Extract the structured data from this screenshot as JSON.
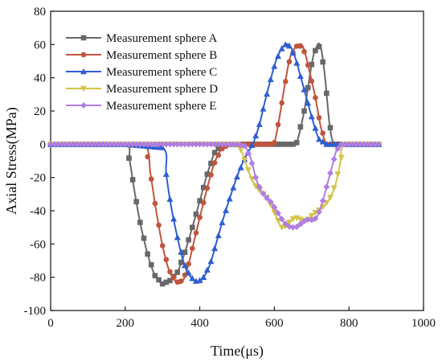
{
  "chart_data": {
    "type": "line",
    "title": "",
    "xlabel": "Time(μs)",
    "ylabel": "Axial Stress(MPa)",
    "xlim": [
      0,
      1000
    ],
    "ylim": [
      -100,
      80
    ],
    "x_ticks": [
      0,
      200,
      400,
      600,
      800,
      1000
    ],
    "y_ticks": [
      -100,
      -80,
      -60,
      -40,
      -20,
      0,
      20,
      40,
      60,
      80
    ],
    "legend_position": "top-left",
    "grid": false,
    "series": [
      {
        "name": "Measurement sphere A",
        "color": "#686868",
        "marker": "square",
        "x": [
          0,
          100,
          200,
          212,
          224,
          240,
          260,
          280,
          300,
          320,
          340,
          360,
          380,
          400,
          420,
          440,
          460,
          480,
          500,
          520,
          540,
          560,
          580,
          600,
          620,
          640,
          650,
          660,
          680,
          700,
          712,
          724,
          736,
          748,
          760,
          780,
          800,
          850,
          880
        ],
        "y": [
          0,
          0,
          0,
          -10,
          -27,
          -47,
          -66,
          -79,
          -84,
          -82,
          -77,
          -65,
          -50,
          -34,
          -18,
          -5,
          0,
          0,
          0,
          0,
          0,
          0,
          0,
          0,
          0,
          0,
          0,
          1,
          20,
          48,
          58,
          59,
          40,
          12,
          0,
          0,
          0,
          0,
          0
        ]
      },
      {
        "name": "Measurement sphere B",
        "color": "#c0553d",
        "marker": "circle",
        "x": [
          0,
          100,
          200,
          255,
          268,
          283,
          300,
          318,
          338,
          355,
          370,
          385,
          400,
          418,
          438,
          458,
          478,
          496,
          510,
          530,
          550,
          570,
          590,
          600,
          612,
          626,
          642,
          660,
          676,
          692,
          710,
          725,
          740,
          755,
          770,
          790,
          850,
          880
        ],
        "y": [
          0,
          0,
          0,
          -1,
          -18,
          -40,
          -61,
          -76,
          -83,
          -82,
          -72,
          -58,
          -44,
          -28,
          -12,
          -3,
          0,
          0,
          0,
          0,
          0,
          0,
          0,
          1,
          14,
          33,
          52,
          59,
          59,
          46,
          28,
          10,
          0,
          0,
          0,
          0,
          0,
          0
        ]
      },
      {
        "name": "Measurement sphere C",
        "color": "#2e5fd0",
        "marker": "triangle",
        "x": [
          0,
          100,
          200,
          300,
          310,
          322,
          340,
          358,
          376,
          394,
          410,
          428,
          446,
          464,
          484,
          504,
          524,
          544,
          560,
          574,
          590,
          604,
          618,
          630,
          642,
          656,
          670,
          686,
          702,
          720,
          740,
          760,
          780,
          850,
          880
        ],
        "y": [
          0,
          0,
          0,
          -2,
          -18,
          -36,
          -56,
          -72,
          -80,
          -83,
          -80,
          -72,
          -58,
          -44,
          -30,
          -17,
          -7,
          1,
          12,
          25,
          39,
          50,
          57,
          60,
          59,
          52,
          41,
          28,
          15,
          3,
          0,
          0,
          0,
          0,
          0
        ]
      },
      {
        "name": "Measurement sphere D",
        "color": "#d4c44a",
        "marker": "triangle-down",
        "x": [
          0,
          100,
          200,
          300,
          400,
          470,
          500,
          512,
          524,
          538,
          552,
          566,
          580,
          594,
          608,
          620,
          632,
          644,
          656,
          668,
          680,
          692,
          704,
          718,
          734,
          750,
          764,
          776,
          788,
          850,
          880
        ],
        "y": [
          0,
          0,
          0,
          0,
          0,
          0,
          0,
          -4,
          -12,
          -20,
          -26,
          -29,
          -32,
          -38,
          -45,
          -50,
          -49,
          -46,
          -44,
          -45,
          -46,
          -45,
          -42,
          -40,
          -37,
          -32,
          -24,
          -12,
          0,
          0,
          0
        ]
      },
      {
        "name": "Measurement sphere E",
        "color": "#b07de0",
        "marker": "diamond",
        "x": [
          0,
          100,
          200,
          300,
          400,
          500,
          520,
          536,
          550,
          564,
          578,
          592,
          606,
          620,
          634,
          646,
          658,
          670,
          682,
          694,
          706,
          718,
          730,
          742,
          754,
          766,
          778,
          790,
          850,
          880
        ],
        "y": [
          0,
          0,
          0,
          0,
          0,
          0,
          -1,
          -8,
          -20,
          -28,
          -32,
          -35,
          -40,
          -45,
          -49,
          -50,
          -50,
          -48,
          -46,
          -45,
          -46,
          -42,
          -34,
          -24,
          -14,
          -4,
          0,
          0,
          0,
          0
        ]
      }
    ]
  }
}
